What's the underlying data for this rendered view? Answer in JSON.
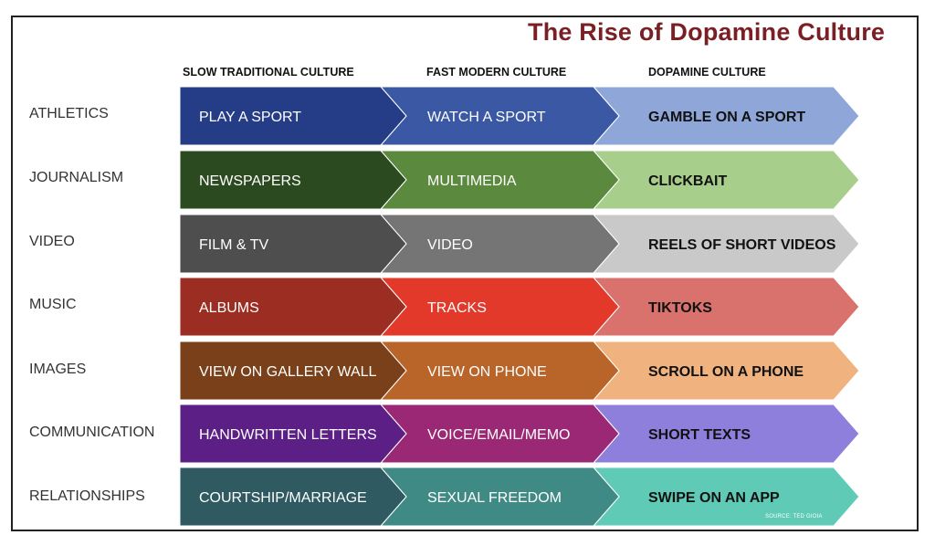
{
  "title": "The Rise of Dopamine Culture",
  "columns": [
    "SLOW TRADITIONAL CULTURE",
    "FAST MODERN CULTURE",
    "DOPAMINE CULTURE"
  ],
  "rows": [
    {
      "label": "ATHLETICS",
      "cells": [
        "PLAY A SPORT",
        "WATCH A SPORT",
        "GAMBLE ON A SPORT"
      ],
      "colors": [
        "#243d86",
        "#3a58a3",
        "#8ea7d8"
      ]
    },
    {
      "label": "JOURNALISM",
      "cells": [
        "NEWSPAPERS",
        "MULTIMEDIA",
        "CLICKBAIT"
      ],
      "colors": [
        "#2b4a1f",
        "#5b8a3e",
        "#a8ce8c"
      ]
    },
    {
      "label": "VIDEO",
      "cells": [
        "FILM &  TV",
        "VIDEO",
        "REELS OF SHORT VIDEOS"
      ],
      "colors": [
        "#4e4e4e",
        "#757575",
        "#c9c9c9"
      ]
    },
    {
      "label": "MUSIC",
      "cells": [
        "ALBUMS",
        "TRACKS",
        "TIKTOKS"
      ],
      "colors": [
        "#9c2d22",
        "#e2392b",
        "#d9726d"
      ]
    },
    {
      "label": "IMAGES",
      "cells": [
        "VIEW ON GALLERY WALL",
        "VIEW ON PHONE",
        "SCROLL ON A PHONE"
      ],
      "colors": [
        "#7a4019",
        "#b9652a",
        "#f0b27e"
      ]
    },
    {
      "label": "COMMUNICATION",
      "cells": [
        "HANDWRITTEN LETTERS",
        "VOICE/EMAIL/MEMO",
        "SHORT TEXTS"
      ],
      "colors": [
        "#5b1f86",
        "#9b2874",
        "#8f7fdc"
      ]
    },
    {
      "label": "RELATIONSHIPS",
      "cells": [
        "COURTSHIP/MARRIAGE",
        "SEXUAL FREEDOM",
        "SWIPE ON AN APP"
      ],
      "colors": [
        "#2f5a62",
        "#3f8a85",
        "#5fcab5"
      ]
    }
  ],
  "source": "SOURCE: TED GIOIA"
}
